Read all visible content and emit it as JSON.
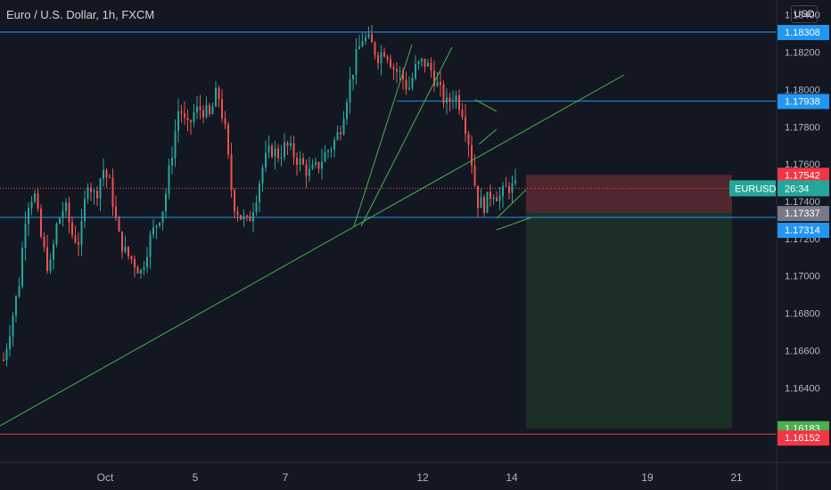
{
  "header": {
    "title": "Euro / U.S. Dollar, 1h, FXCM",
    "currency_button": "USD"
  },
  "colors": {
    "background": "#131722",
    "up_candle": "#26a69a",
    "down_candle": "#ef5350",
    "horizontal_line": "#2196f3",
    "trendline": "#4caf50",
    "stop_zone": "#5b2a30",
    "target_zone": "#1e3329",
    "support_line_red": "#f23645",
    "axis_text": "#b2b5be"
  },
  "chart_data": {
    "type": "candlestick",
    "symbol": "EURUSD",
    "timeframe": "1h",
    "y_axis": {
      "range": [
        1.16,
        1.1848
      ],
      "ticks": [
        "1.18400",
        "1.18200",
        "1.18000",
        "1.17800",
        "1.17600",
        "1.17400",
        "1.17200",
        "1.17000",
        "1.16800",
        "1.16600",
        "1.16400"
      ]
    },
    "x_axis": {
      "ticks": [
        "Oct",
        "5",
        "7",
        "12",
        "14",
        "19",
        "21"
      ]
    },
    "price_labels": [
      {
        "value": "1.18308",
        "kind": "horizontal-line"
      },
      {
        "value": "1.17938",
        "kind": "horizontal-line"
      },
      {
        "value": "1.17542",
        "kind": "stop-level"
      },
      {
        "value": "1.17337",
        "kind": "entry-level"
      },
      {
        "value": "1.17314",
        "kind": "horizontal-line"
      },
      {
        "value": "1.16183",
        "kind": "target-level"
      },
      {
        "value": "1.16152",
        "kind": "horizontal-line"
      }
    ],
    "current_price": {
      "symbol_label": "EURUSD",
      "countdown": "26:34",
      "value": 1.1747
    },
    "horizontal_lines": [
      1.18308,
      1.17938,
      1.17314,
      1.16152
    ],
    "position": {
      "entry": 1.17337,
      "stop": 1.17542,
      "target": 1.16183
    },
    "price_path": [
      {
        "t": 0,
        "p": 1.1655
      },
      {
        "t": 1,
        "p": 1.1675
      },
      {
        "t": 2,
        "p": 1.1695
      },
      {
        "t": 3,
        "p": 1.1738
      },
      {
        "t": 4,
        "p": 1.1745
      },
      {
        "t": 5,
        "p": 1.1718
      },
      {
        "t": 6,
        "p": 1.1702
      },
      {
        "t": 7,
        "p": 1.1728
      },
      {
        "t": 8,
        "p": 1.1738
      },
      {
        "t": 9,
        "p": 1.1722
      },
      {
        "t": 10,
        "p": 1.1718
      },
      {
        "t": 11,
        "p": 1.1752
      },
      {
        "t": 12,
        "p": 1.1742
      },
      {
        "t": 13,
        "p": 1.1758
      },
      {
        "t": 14,
        "p": 1.1748
      },
      {
        "t": 15,
        "p": 1.1722
      },
      {
        "t": 16,
        "p": 1.1712
      },
      {
        "t": 17,
        "p": 1.1708
      },
      {
        "t": 18,
        "p": 1.1702
      },
      {
        "t": 19,
        "p": 1.1718
      },
      {
        "t": 20,
        "p": 1.1728
      },
      {
        "t": 21,
        "p": 1.1738
      },
      {
        "t": 22,
        "p": 1.1765
      },
      {
        "t": 23,
        "p": 1.1792
      },
      {
        "t": 24,
        "p": 1.1778
      },
      {
        "t": 25,
        "p": 1.1788
      },
      {
        "t": 26,
        "p": 1.179
      },
      {
        "t": 27,
        "p": 1.1785
      },
      {
        "t": 28,
        "p": 1.18
      },
      {
        "t": 29,
        "p": 1.1778
      },
      {
        "t": 30,
        "p": 1.174
      },
      {
        "t": 31,
        "p": 1.1732
      },
      {
        "t": 32,
        "p": 1.1728
      },
      {
        "t": 33,
        "p": 1.1742
      },
      {
        "t": 34,
        "p": 1.176
      },
      {
        "t": 35,
        "p": 1.1768
      },
      {
        "t": 36,
        "p": 1.1765
      },
      {
        "t": 37,
        "p": 1.177
      },
      {
        "t": 38,
        "p": 1.1765
      },
      {
        "t": 39,
        "p": 1.176
      },
      {
        "t": 40,
        "p": 1.1755
      },
      {
        "t": 41,
        "p": 1.1758
      },
      {
        "t": 42,
        "p": 1.1765
      },
      {
        "t": 43,
        "p": 1.177
      },
      {
        "t": 44,
        "p": 1.1778
      },
      {
        "t": 45,
        "p": 1.1798
      },
      {
        "t": 46,
        "p": 1.1815
      },
      {
        "t": 47,
        "p": 1.1828
      },
      {
        "t": 48,
        "p": 1.1825
      },
      {
        "t": 49,
        "p": 1.1818
      },
      {
        "t": 50,
        "p": 1.1822
      },
      {
        "t": 51,
        "p": 1.1812
      },
      {
        "t": 52,
        "p": 1.1808
      },
      {
        "t": 53,
        "p": 1.18
      },
      {
        "t": 54,
        "p": 1.1812
      },
      {
        "t": 55,
        "p": 1.1815
      },
      {
        "t": 56,
        "p": 1.181
      },
      {
        "t": 57,
        "p": 1.18
      },
      {
        "t": 58,
        "p": 1.1792
      },
      {
        "t": 59,
        "p": 1.1798
      },
      {
        "t": 60,
        "p": 1.179
      },
      {
        "t": 61,
        "p": 1.177
      },
      {
        "t": 62,
        "p": 1.174
      },
      {
        "t": 63,
        "p": 1.1738
      },
      {
        "t": 64,
        "p": 1.1746
      },
      {
        "t": 65,
        "p": 1.1742
      },
      {
        "t": 66,
        "p": 1.1748
      },
      {
        "t": 67,
        "p": 1.1747
      }
    ]
  }
}
